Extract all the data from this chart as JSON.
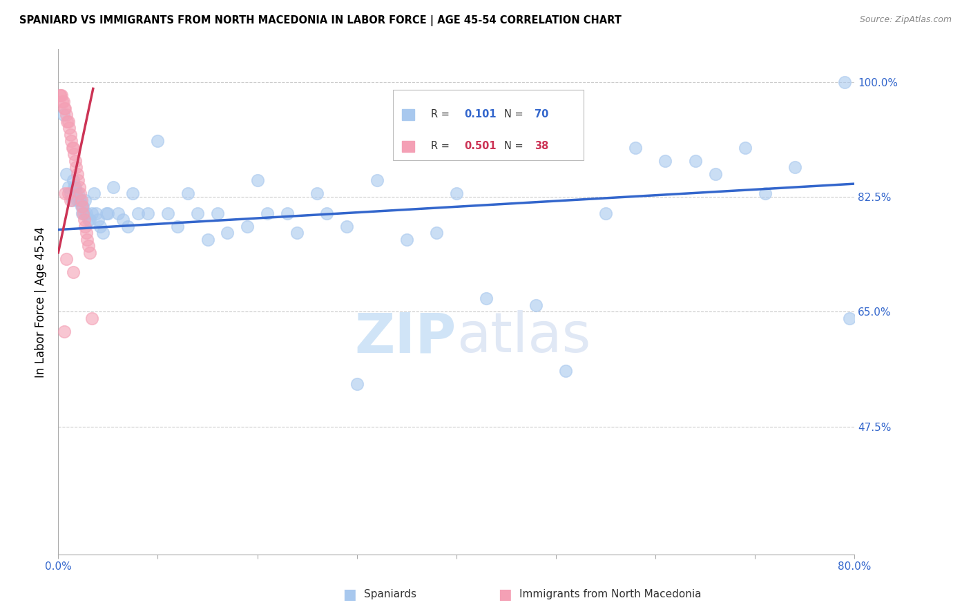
{
  "title": "SPANIARD VS IMMIGRANTS FROM NORTH MACEDONIA IN LABOR FORCE | AGE 45-54 CORRELATION CHART",
  "source": "Source: ZipAtlas.com",
  "ylabel": "In Labor Force | Age 45-54",
  "xlim": [
    0.0,
    0.8
  ],
  "ylim": [
    0.28,
    1.05
  ],
  "yticks": [
    0.475,
    0.65,
    0.825,
    1.0
  ],
  "ytick_labels": [
    "47.5%",
    "65.0%",
    "82.5%",
    "100.0%"
  ],
  "blue_R": 0.101,
  "blue_N": 70,
  "pink_R": 0.501,
  "pink_N": 38,
  "blue_color": "#A8C8EE",
  "pink_color": "#F4A0B5",
  "blue_line_color": "#3366CC",
  "pink_line_color": "#CC3355",
  "watermark_color": "#D0E4F7",
  "legend_blue_label": "Spaniards",
  "legend_pink_label": "Immigrants from North Macedonia",
  "blue_scatter_x": [
    0.005,
    0.008,
    0.01,
    0.012,
    0.014,
    0.015,
    0.016,
    0.017,
    0.018,
    0.019,
    0.02,
    0.021,
    0.022,
    0.023,
    0.024,
    0.025,
    0.026,
    0.027,
    0.028,
    0.03,
    0.032,
    0.034,
    0.036,
    0.038,
    0.04,
    0.042,
    0.045,
    0.048,
    0.05,
    0.055,
    0.06,
    0.065,
    0.07,
    0.075,
    0.08,
    0.09,
    0.1,
    0.11,
    0.12,
    0.13,
    0.14,
    0.15,
    0.16,
    0.17,
    0.19,
    0.2,
    0.21,
    0.23,
    0.24,
    0.26,
    0.27,
    0.29,
    0.3,
    0.32,
    0.35,
    0.38,
    0.4,
    0.43,
    0.48,
    0.51,
    0.55,
    0.58,
    0.61,
    0.64,
    0.66,
    0.69,
    0.71,
    0.74,
    0.79,
    0.795
  ],
  "blue_scatter_y": [
    0.95,
    0.86,
    0.84,
    0.83,
    0.82,
    0.85,
    0.84,
    0.84,
    0.83,
    0.82,
    0.83,
    0.82,
    0.82,
    0.81,
    0.8,
    0.81,
    0.8,
    0.82,
    0.8,
    0.79,
    0.79,
    0.8,
    0.83,
    0.8,
    0.79,
    0.78,
    0.77,
    0.8,
    0.8,
    0.84,
    0.8,
    0.79,
    0.78,
    0.83,
    0.8,
    0.8,
    0.91,
    0.8,
    0.78,
    0.83,
    0.8,
    0.76,
    0.8,
    0.77,
    0.78,
    0.85,
    0.8,
    0.8,
    0.77,
    0.83,
    0.8,
    0.78,
    0.54,
    0.85,
    0.76,
    0.77,
    0.83,
    0.67,
    0.66,
    0.56,
    0.8,
    0.9,
    0.88,
    0.88,
    0.86,
    0.9,
    0.83,
    0.87,
    1.0,
    0.64
  ],
  "pink_scatter_x": [
    0.0015,
    0.002,
    0.003,
    0.004,
    0.005,
    0.006,
    0.007,
    0.008,
    0.009,
    0.01,
    0.011,
    0.012,
    0.013,
    0.014,
    0.015,
    0.016,
    0.017,
    0.018,
    0.019,
    0.02,
    0.021,
    0.022,
    0.023,
    0.024,
    0.025,
    0.026,
    0.027,
    0.028,
    0.029,
    0.03,
    0.032,
    0.034,
    0.015,
    0.012,
    0.01,
    0.008,
    0.007,
    0.006
  ],
  "pink_scatter_y": [
    0.98,
    0.98,
    0.98,
    0.97,
    0.97,
    0.96,
    0.96,
    0.95,
    0.94,
    0.94,
    0.93,
    0.92,
    0.91,
    0.9,
    0.9,
    0.89,
    0.88,
    0.87,
    0.86,
    0.85,
    0.84,
    0.83,
    0.82,
    0.81,
    0.8,
    0.79,
    0.78,
    0.77,
    0.76,
    0.75,
    0.74,
    0.64,
    0.71,
    0.82,
    0.83,
    0.73,
    0.83,
    0.62
  ],
  "blue_line_x": [
    0.0,
    0.8
  ],
  "blue_line_y": [
    0.775,
    0.845
  ],
  "pink_line_x": [
    0.0,
    0.035
  ],
  "pink_line_y": [
    0.74,
    0.99
  ]
}
